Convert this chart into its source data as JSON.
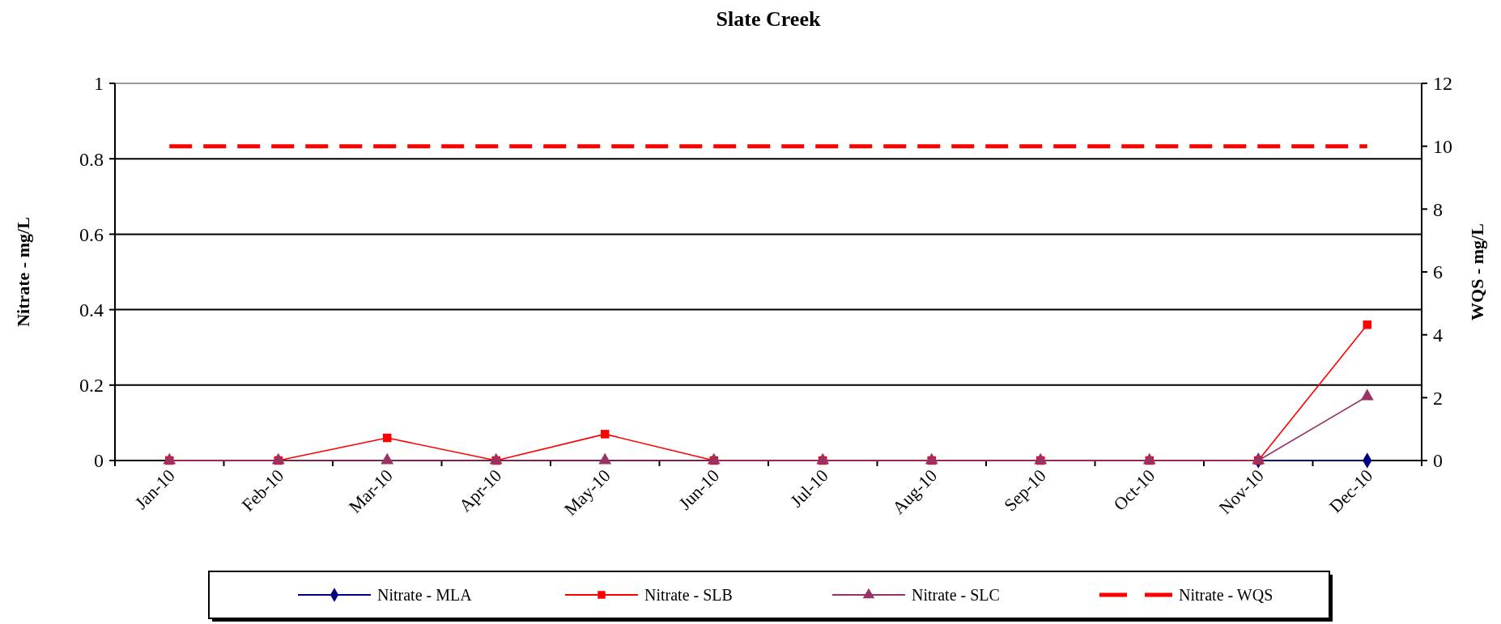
{
  "chart_data": {
    "type": "line",
    "title": "Slate Creek",
    "ylabel": "Nitrate - mg/L",
    "y2label": "WQS - mg/L",
    "categories": [
      "Jan-10",
      "Feb-10",
      "Mar-10",
      "Apr-10",
      "May-10",
      "Jun-10",
      "Jul-10",
      "Aug-10",
      "Sep-10",
      "Oct-10",
      "Nov-10",
      "Dec-10"
    ],
    "series": [
      {
        "name": "Nitrate - MLA",
        "color": "#000080",
        "marker": "diamond",
        "line_style": "solid",
        "values": [
          null,
          null,
          null,
          null,
          null,
          null,
          null,
          null,
          null,
          null,
          0,
          0
        ]
      },
      {
        "name": "Nitrate - SLB",
        "color": "#ff0000",
        "marker": "square",
        "line_style": "solid",
        "values": [
          0,
          0,
          0.06,
          0,
          0.07,
          0,
          0,
          0,
          0,
          0,
          0,
          0.36
        ]
      },
      {
        "name": "Nitrate - SLC",
        "color": "#993366",
        "marker": "triangle",
        "line_style": "solid",
        "values": [
          0,
          0,
          0,
          0,
          0,
          0,
          0,
          0,
          0,
          0,
          0,
          0.17
        ]
      },
      {
        "name": "Nitrate - WQS",
        "color": "#ff0000",
        "marker": "none",
        "line_style": "dashed",
        "axis": "y2",
        "values": [
          10,
          10,
          10,
          10,
          10,
          10,
          10,
          10,
          10,
          10,
          10,
          10
        ]
      }
    ],
    "ylim": [
      0,
      1
    ],
    "yticks": [
      0,
      0.2,
      0.4,
      0.6,
      0.8,
      1
    ],
    "y2lim": [
      0,
      12
    ],
    "y2ticks": [
      0,
      2,
      4,
      6,
      8,
      10,
      12
    ],
    "grid": "y",
    "legend": "bottom"
  }
}
